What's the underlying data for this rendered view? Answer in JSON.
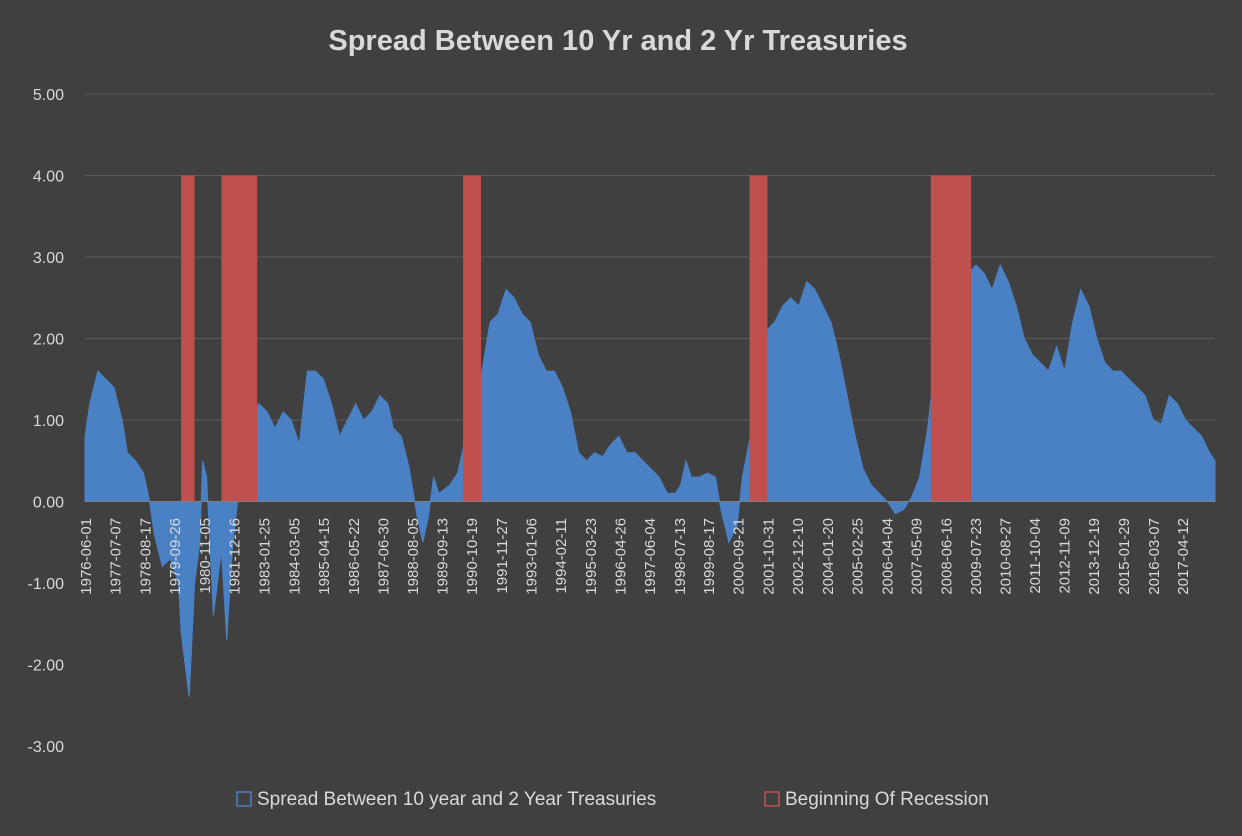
{
  "chart_data": {
    "type": "area",
    "title": "Spread Between 10 Yr and 2 Yr Treasuries",
    "xlabel": "",
    "ylabel": "",
    "ylim": [
      -3,
      5
    ],
    "y_ticks": [
      "5.00",
      "4.00",
      "3.00",
      "2.00",
      "1.00",
      "0.00",
      "-1.00",
      "-2.00",
      "-3.00"
    ],
    "x_tick_labels": [
      "1976-06-01",
      "1977-07-07",
      "1978-08-17",
      "1979-09-26",
      "1980-11-05",
      "1981-12-16",
      "1983-01-25",
      "1984-03-05",
      "1985-04-15",
      "1986-05-22",
      "1987-06-30",
      "1988-08-05",
      "1989-09-13",
      "1990-10-19",
      "1991-11-27",
      "1993-01-06",
      "1994-02-11",
      "1995-03-23",
      "1996-04-26",
      "1997-06-04",
      "1998-07-13",
      "1999-08-17",
      "2000-09-21",
      "2001-10-31",
      "2002-12-10",
      "2004-01-20",
      "2005-02-25",
      "2006-04-04",
      "2007-05-09",
      "2008-06-16",
      "2009-07-23",
      "2010-08-27",
      "2011-10-04",
      "2012-11-09",
      "2013-12-19",
      "2015-01-29",
      "2016-03-07",
      "2017-04-12"
    ],
    "grid": true,
    "legend_position": "bottom",
    "series": [
      {
        "name": "Spread Between 10 year and 2 Year Treasuries",
        "kind": "area",
        "color": "#4a80c4",
        "x": [
          1976.42,
          1976.6,
          1976.9,
          1977.2,
          1977.5,
          1977.8,
          1978.0,
          1978.3,
          1978.6,
          1978.8,
          1979.0,
          1979.3,
          1979.6,
          1979.9,
          1980.0,
          1980.3,
          1980.5,
          1980.7,
          1980.8,
          1980.95,
          1981.2,
          1981.5,
          1981.7,
          1981.9,
          1982.2,
          1982.5,
          1982.7,
          1982.9,
          1983.2,
          1983.5,
          1983.8,
          1984.1,
          1984.4,
          1984.7,
          1985.0,
          1985.3,
          1985.6,
          1985.9,
          1986.2,
          1986.5,
          1986.8,
          1987.1,
          1987.4,
          1987.7,
          1987.9,
          1988.2,
          1988.5,
          1988.8,
          1989.0,
          1989.2,
          1989.4,
          1989.6,
          1989.8,
          1990.0,
          1990.3,
          1990.6,
          1990.9,
          1991.2,
          1991.5,
          1991.8,
          1992.1,
          1992.4,
          1992.7,
          1993.0,
          1993.3,
          1993.6,
          1993.9,
          1994.2,
          1994.5,
          1994.8,
          1995.1,
          1995.4,
          1995.7,
          1996.0,
          1996.3,
          1996.6,
          1996.9,
          1997.2,
          1997.5,
          1997.8,
          1998.1,
          1998.4,
          1998.6,
          1998.8,
          1999.0,
          1999.3,
          1999.6,
          1999.9,
          2000.1,
          2000.4,
          2000.7,
          2000.9,
          2001.2,
          2001.5,
          2001.8,
          2002.1,
          2002.4,
          2002.7,
          2003.0,
          2003.3,
          2003.6,
          2003.9,
          2004.2,
          2004.5,
          2004.8,
          2005.1,
          2005.4,
          2005.7,
          2006.0,
          2006.3,
          2006.6,
          2006.9,
          2007.2,
          2007.5,
          2007.8,
          2008.1,
          2008.3,
          2008.5,
          2008.7,
          2009.0,
          2009.3,
          2009.6,
          2009.9,
          2010.2,
          2010.5,
          2010.8,
          2011.1,
          2011.4,
          2011.7,
          2012.0,
          2012.3,
          2012.6,
          2012.9,
          2013.2,
          2013.5,
          2013.8,
          2014.1,
          2014.4,
          2014.7,
          2015.0,
          2015.3,
          2015.6,
          2015.9,
          2016.2,
          2016.5,
          2016.8,
          2017.1,
          2017.4,
          2017.7,
          2018.0,
          2018.3,
          2018.5
        ],
        "y": [
          0.8,
          1.2,
          1.6,
          1.5,
          1.4,
          1.0,
          0.6,
          0.5,
          0.35,
          0.05,
          -0.4,
          -0.8,
          -0.7,
          -1.0,
          -1.6,
          -2.4,
          -1.0,
          -0.5,
          0.5,
          0.3,
          -1.4,
          -0.6,
          -1.7,
          -0.6,
          0.3,
          0.8,
          1.1,
          1.2,
          1.1,
          0.9,
          1.1,
          1.0,
          0.7,
          1.6,
          1.6,
          1.5,
          1.2,
          0.8,
          1.0,
          1.2,
          1.0,
          1.1,
          1.3,
          1.2,
          0.9,
          0.8,
          0.4,
          -0.2,
          -0.5,
          -0.2,
          0.3,
          0.1,
          0.15,
          0.2,
          0.35,
          0.8,
          1.0,
          1.6,
          2.2,
          2.3,
          2.6,
          2.5,
          2.3,
          2.2,
          1.8,
          1.6,
          1.6,
          1.4,
          1.1,
          0.6,
          0.5,
          0.6,
          0.55,
          0.7,
          0.8,
          0.6,
          0.6,
          0.5,
          0.4,
          0.3,
          0.1,
          0.1,
          0.2,
          0.5,
          0.3,
          0.3,
          0.35,
          0.3,
          -0.1,
          -0.5,
          -0.3,
          0.3,
          0.8,
          1.4,
          2.1,
          2.2,
          2.4,
          2.5,
          2.4,
          2.7,
          2.6,
          2.4,
          2.2,
          1.8,
          1.3,
          0.8,
          0.4,
          0.2,
          0.1,
          0.0,
          -0.15,
          -0.1,
          0.05,
          0.3,
          0.9,
          1.8,
          2.1,
          1.9,
          1.9,
          2.6,
          2.8,
          2.9,
          2.8,
          2.6,
          2.9,
          2.7,
          2.4,
          2.0,
          1.8,
          1.7,
          1.6,
          1.9,
          1.6,
          2.2,
          2.6,
          2.4,
          2.0,
          1.7,
          1.6,
          1.6,
          1.5,
          1.4,
          1.3,
          1.0,
          0.95,
          1.3,
          1.2,
          1.0,
          0.9,
          0.8,
          0.6,
          0.5
        ]
      },
      {
        "name": "Beginning Of Recession",
        "kind": "bar",
        "color": "#c0504d",
        "value": 4.0,
        "ranges": [
          [
            "1980-01-01",
            "1980-07-01"
          ],
          [
            "1981-07-01",
            "1982-11-01"
          ],
          [
            "1990-07-01",
            "1991-03-01"
          ],
          [
            "2001-03-01",
            "2001-11-01"
          ],
          [
            "2007-12-01",
            "2009-06-01"
          ]
        ]
      }
    ]
  }
}
